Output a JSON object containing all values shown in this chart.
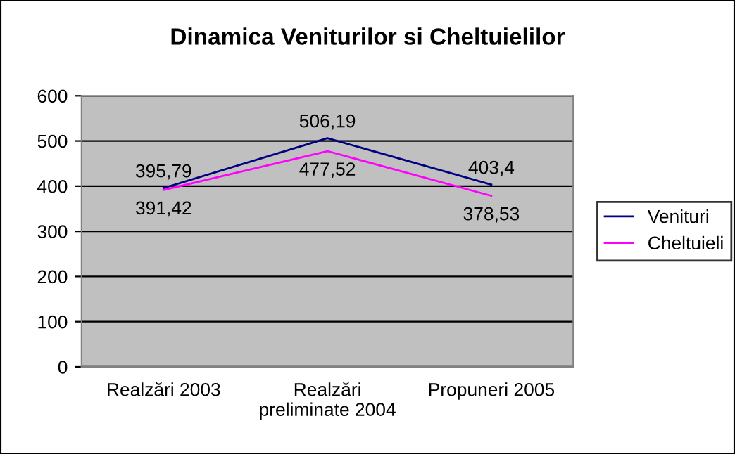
{
  "chart_data": {
    "type": "line",
    "title": "Dinamica Veniturilor si Cheltuielilor",
    "categories": [
      "Realzări 2003",
      "Realzări preliminate 2004",
      "Propuneri 2005"
    ],
    "series": [
      {
        "name": "Venituri",
        "color": "#000080",
        "values": [
          395.79,
          506.19,
          403.4
        ],
        "value_labels": [
          "395,79",
          "506,19",
          "403,4"
        ]
      },
      {
        "name": "Cheltuieli",
        "color": "#ff00ff",
        "values": [
          391.42,
          477.52,
          378.53
        ],
        "value_labels": [
          "391,42",
          "477,52",
          "378,53"
        ]
      }
    ],
    "ylim": [
      0,
      600
    ],
    "yticks": [
      0,
      100,
      200,
      300,
      400,
      500,
      600
    ],
    "grid": "y",
    "legend": "right",
    "marker": "none",
    "line_style": "solid"
  }
}
